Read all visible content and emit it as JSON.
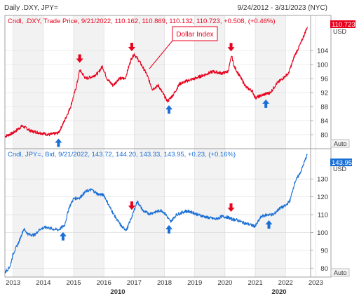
{
  "header": {
    "title": "Daily .DXY, JPY=",
    "range": "9/24/2012 - 3/31/2023 (NYC)"
  },
  "colors": {
    "dxy": "#e8001c",
    "jpy": "#1a6fd6",
    "arrow_up": "#1a6fd6",
    "arrow_down": "#e8001c",
    "shade": "#f2f2f2",
    "grid": "#d9d9d9",
    "border": "#a0a0a0",
    "text": "#333333"
  },
  "chart_data": [
    {
      "type": "line",
      "series": [
        {
          "name": "Dollar Index",
          "x": [
            2012.73,
            2013.0,
            2013.3,
            2013.6,
            2013.9,
            2014.2,
            2014.5,
            2014.7,
            2014.9,
            2015.1,
            2015.2,
            2015.4,
            2015.6,
            2015.8,
            2015.95,
            2016.1,
            2016.3,
            2016.5,
            2016.7,
            2016.9,
            2017.0,
            2017.2,
            2017.4,
            2017.6,
            2017.8,
            2018.0,
            2018.1,
            2018.3,
            2018.5,
            2018.8,
            2019.0,
            2019.3,
            2019.6,
            2019.9,
            2020.1,
            2020.22,
            2020.3,
            2020.5,
            2020.7,
            2020.9,
            2021.0,
            2021.3,
            2021.5,
            2021.7,
            2021.9,
            2022.1,
            2022.3,
            2022.5,
            2022.72
          ],
          "values": [
            79.5,
            80.5,
            82.5,
            81.0,
            80.5,
            80.0,
            80.5,
            84.0,
            88.0,
            94.0,
            98.5,
            96.0,
            96.5,
            97.5,
            99.5,
            96.0,
            94.0,
            96.0,
            96.0,
            101.5,
            103.0,
            100.5,
            97.5,
            93.0,
            94.0,
            91.0,
            89.5,
            91.5,
            94.5,
            95.5,
            96.0,
            97.0,
            98.0,
            97.5,
            98.0,
            102.5,
            99.5,
            96.5,
            93.5,
            92.5,
            90.5,
            91.5,
            92.0,
            94.5,
            96.0,
            97.5,
            102.5,
            106.0,
            110.723
          ]
        }
      ],
      "legend": "Cndl, .DXY, Trade Price, 9/21/2022, 110.162, 110.869, 110.132, 110.723, +0.508, (+0.46%)",
      "ylim": [
        76,
        114
      ],
      "yticks": [
        "80",
        "84",
        "88",
        "92",
        "96",
        "100",
        "104"
      ],
      "last_value": "110.723",
      "axis_unit": "USD",
      "scale_mode": "Auto",
      "annotation": "Dollar Index",
      "arrows_down_x": [
        2015.2,
        2016.92,
        2020.2
      ],
      "arrows_up_x": [
        2014.5,
        2018.15,
        2021.35
      ],
      "grid": true
    },
    {
      "type": "line",
      "series": [
        {
          "name": "JPY",
          "x": [
            2012.73,
            2012.9,
            2013.0,
            2013.2,
            2013.35,
            2013.5,
            2013.7,
            2013.9,
            2014.1,
            2014.3,
            2014.5,
            2014.7,
            2014.85,
            2015.0,
            2015.2,
            2015.4,
            2015.6,
            2015.8,
            2016.0,
            2016.2,
            2016.4,
            2016.6,
            2016.75,
            2016.95,
            2017.1,
            2017.3,
            2017.5,
            2017.7,
            2017.9,
            2018.05,
            2018.2,
            2018.4,
            2018.7,
            2018.9,
            2019.1,
            2019.4,
            2019.7,
            2019.9,
            2020.1,
            2020.22,
            2020.4,
            2020.6,
            2020.8,
            2021.0,
            2021.2,
            2021.4,
            2021.6,
            2021.8,
            2022.0,
            2022.15,
            2022.3,
            2022.5,
            2022.72
          ],
          "values": [
            77.5,
            81.0,
            88.0,
            95.0,
            102.0,
            99.0,
            98.5,
            102.0,
            103.0,
            102.0,
            101.5,
            104.0,
            114.0,
            119.0,
            119.5,
            123.0,
            124.0,
            121.5,
            121.0,
            114.0,
            108.0,
            103.0,
            101.5,
            110.0,
            117.5,
            112.0,
            110.5,
            111.5,
            112.5,
            110.0,
            106.0,
            110.0,
            112.0,
            111.5,
            110.0,
            108.5,
            107.5,
            109.0,
            108.5,
            107.5,
            107.0,
            105.5,
            104.5,
            103.5,
            109.0,
            110.0,
            110.0,
            113.5,
            115.0,
            118.0,
            128.0,
            134.0,
            143.95
          ]
        }
      ],
      "legend": "Cndl, JPY=, Bid, 9/21/2022, 143.72, 144.20, 143.33, 143.95, +0.23, (+0.16%)",
      "ylim": [
        75,
        147
      ],
      "yticks": [
        "80",
        "90",
        "100",
        "110",
        "120",
        "130"
      ],
      "last_value": "143.95",
      "axis_unit": "USD",
      "scale_mode": "Auto",
      "arrows_down_x": [
        2016.92,
        2020.2
      ],
      "arrows_up_x": [
        2014.65,
        2018.15,
        2021.45
      ],
      "grid": true
    }
  ],
  "x_axis": {
    "years": [
      "2013",
      "2014",
      "2015",
      "2016",
      "2017",
      "2018",
      "2019",
      "2020",
      "2021",
      "2022",
      "2023"
    ],
    "decades": [
      "2010",
      "2020"
    ]
  }
}
